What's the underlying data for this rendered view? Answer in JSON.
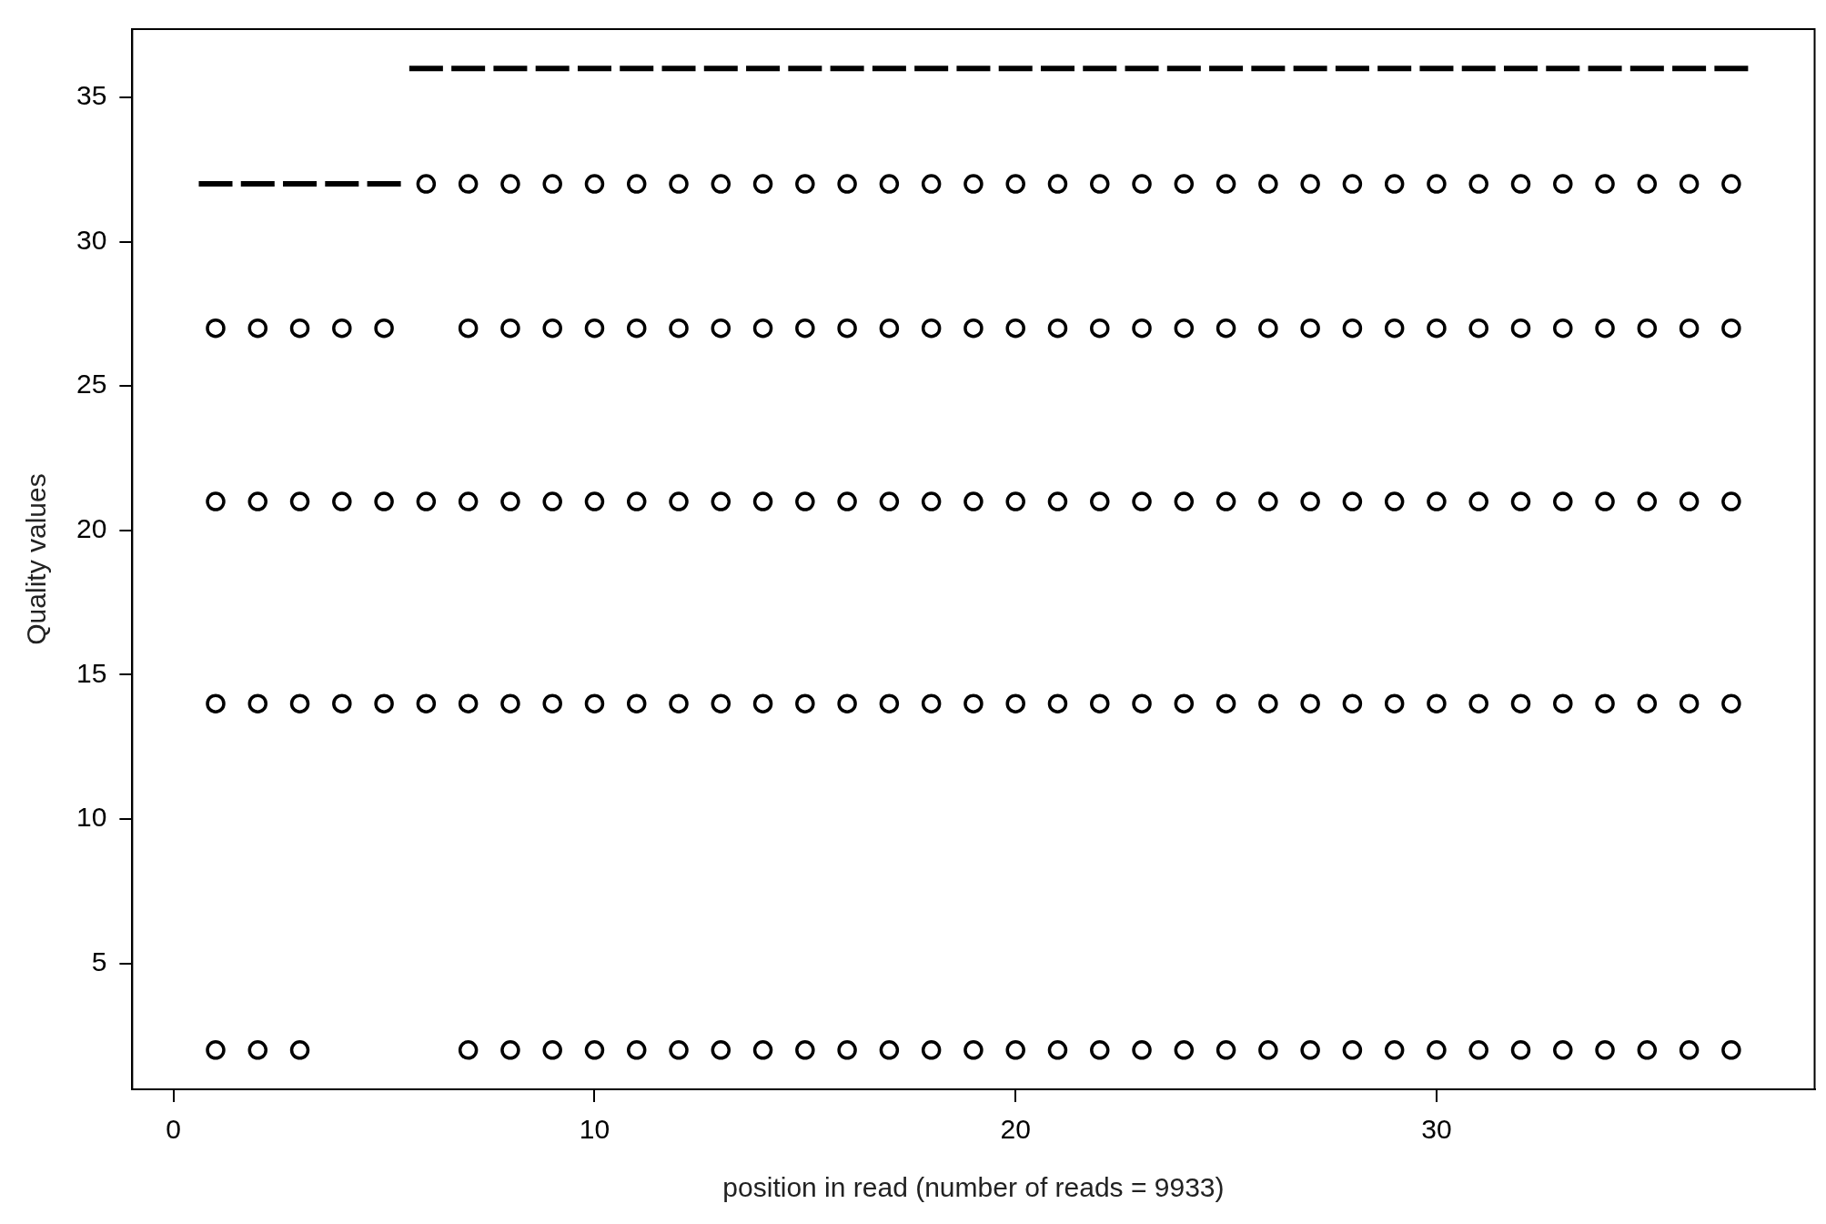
{
  "chart_data": {
    "type": "box",
    "xlabel": "position in read (number of reads = 9933)",
    "ylabel": "Quality values",
    "x": [
      1,
      2,
      3,
      4,
      5,
      6,
      7,
      8,
      9,
      10,
      11,
      12,
      13,
      14,
      15,
      16,
      17,
      18,
      19,
      20,
      21,
      22,
      23,
      24,
      25,
      26,
      27,
      28,
      29,
      30,
      31,
      32,
      33,
      34,
      35,
      36,
      37
    ],
    "xlim": [
      -0.98,
      38.98
    ],
    "xticks": [
      0,
      10,
      20,
      30
    ],
    "ylim": [
      0.64,
      37.36
    ],
    "yticks": [
      5,
      10,
      15,
      20,
      25,
      30,
      35
    ],
    "grid": false,
    "legend": false,
    "marker": "circle",
    "color": "#000000",
    "boxes": [
      {
        "low": 32,
        "q1": 32,
        "median": 32,
        "q3": 32,
        "high": 32,
        "outliers": [
          27,
          21,
          14,
          2
        ]
      },
      {
        "low": 32,
        "q1": 32,
        "median": 32,
        "q3": 32,
        "high": 32,
        "outliers": [
          27,
          21,
          14,
          2
        ]
      },
      {
        "low": 32,
        "q1": 32,
        "median": 32,
        "q3": 32,
        "high": 32,
        "outliers": [
          27,
          21,
          14,
          2
        ]
      },
      {
        "low": 32,
        "q1": 32,
        "median": 32,
        "q3": 32,
        "high": 32,
        "outliers": [
          27,
          21,
          14
        ]
      },
      {
        "low": 32,
        "q1": 32,
        "median": 32,
        "q3": 32,
        "high": 32,
        "outliers": [
          27,
          21,
          14
        ]
      },
      {
        "low": 36,
        "q1": 36,
        "median": 36,
        "q3": 36,
        "high": 36,
        "outliers": [
          32,
          21,
          14
        ]
      },
      {
        "low": 36,
        "q1": 36,
        "median": 36,
        "q3": 36,
        "high": 36,
        "outliers": [
          32,
          27,
          21,
          14,
          2
        ]
      },
      {
        "low": 36,
        "q1": 36,
        "median": 36,
        "q3": 36,
        "high": 36,
        "outliers": [
          32,
          27,
          21,
          14,
          2
        ]
      },
      {
        "low": 36,
        "q1": 36,
        "median": 36,
        "q3": 36,
        "high": 36,
        "outliers": [
          32,
          27,
          21,
          14,
          2
        ]
      },
      {
        "low": 36,
        "q1": 36,
        "median": 36,
        "q3": 36,
        "high": 36,
        "outliers": [
          32,
          27,
          21,
          14,
          2
        ]
      },
      {
        "low": 36,
        "q1": 36,
        "median": 36,
        "q3": 36,
        "high": 36,
        "outliers": [
          32,
          27,
          21,
          14,
          2
        ]
      },
      {
        "low": 36,
        "q1": 36,
        "median": 36,
        "q3": 36,
        "high": 36,
        "outliers": [
          32,
          27,
          21,
          14,
          2
        ]
      },
      {
        "low": 36,
        "q1": 36,
        "median": 36,
        "q3": 36,
        "high": 36,
        "outliers": [
          32,
          27,
          21,
          14,
          2
        ]
      },
      {
        "low": 36,
        "q1": 36,
        "median": 36,
        "q3": 36,
        "high": 36,
        "outliers": [
          32,
          27,
          21,
          14,
          2
        ]
      },
      {
        "low": 36,
        "q1": 36,
        "median": 36,
        "q3": 36,
        "high": 36,
        "outliers": [
          32,
          27,
          21,
          14,
          2
        ]
      },
      {
        "low": 36,
        "q1": 36,
        "median": 36,
        "q3": 36,
        "high": 36,
        "outliers": [
          32,
          27,
          21,
          14,
          2
        ]
      },
      {
        "low": 36,
        "q1": 36,
        "median": 36,
        "q3": 36,
        "high": 36,
        "outliers": [
          32,
          27,
          21,
          14,
          2
        ]
      },
      {
        "low": 36,
        "q1": 36,
        "median": 36,
        "q3": 36,
        "high": 36,
        "outliers": [
          32,
          27,
          21,
          14,
          2
        ]
      },
      {
        "low": 36,
        "q1": 36,
        "median": 36,
        "q3": 36,
        "high": 36,
        "outliers": [
          32,
          27,
          21,
          14,
          2
        ]
      },
      {
        "low": 36,
        "q1": 36,
        "median": 36,
        "q3": 36,
        "high": 36,
        "outliers": [
          32,
          27,
          21,
          14,
          2
        ]
      },
      {
        "low": 36,
        "q1": 36,
        "median": 36,
        "q3": 36,
        "high": 36,
        "outliers": [
          32,
          27,
          21,
          14,
          2
        ]
      },
      {
        "low": 36,
        "q1": 36,
        "median": 36,
        "q3": 36,
        "high": 36,
        "outliers": [
          32,
          27,
          21,
          14,
          2
        ]
      },
      {
        "low": 36,
        "q1": 36,
        "median": 36,
        "q3": 36,
        "high": 36,
        "outliers": [
          32,
          27,
          21,
          14,
          2
        ]
      },
      {
        "low": 36,
        "q1": 36,
        "median": 36,
        "q3": 36,
        "high": 36,
        "outliers": [
          32,
          27,
          21,
          14,
          2
        ]
      },
      {
        "low": 36,
        "q1": 36,
        "median": 36,
        "q3": 36,
        "high": 36,
        "outliers": [
          32,
          27,
          21,
          14,
          2
        ]
      },
      {
        "low": 36,
        "q1": 36,
        "median": 36,
        "q3": 36,
        "high": 36,
        "outliers": [
          32,
          27,
          21,
          14,
          2
        ]
      },
      {
        "low": 36,
        "q1": 36,
        "median": 36,
        "q3": 36,
        "high": 36,
        "outliers": [
          32,
          27,
          21,
          14,
          2
        ]
      },
      {
        "low": 36,
        "q1": 36,
        "median": 36,
        "q3": 36,
        "high": 36,
        "outliers": [
          32,
          27,
          21,
          14,
          2
        ]
      },
      {
        "low": 36,
        "q1": 36,
        "median": 36,
        "q3": 36,
        "high": 36,
        "outliers": [
          32,
          27,
          21,
          14,
          2
        ]
      },
      {
        "low": 36,
        "q1": 36,
        "median": 36,
        "q3": 36,
        "high": 36,
        "outliers": [
          32,
          27,
          21,
          14,
          2
        ]
      },
      {
        "low": 36,
        "q1": 36,
        "median": 36,
        "q3": 36,
        "high": 36,
        "outliers": [
          32,
          27,
          21,
          14,
          2
        ]
      },
      {
        "low": 36,
        "q1": 36,
        "median": 36,
        "q3": 36,
        "high": 36,
        "outliers": [
          32,
          27,
          21,
          14,
          2
        ]
      },
      {
        "low": 36,
        "q1": 36,
        "median": 36,
        "q3": 36,
        "high": 36,
        "outliers": [
          32,
          27,
          21,
          14,
          2
        ]
      },
      {
        "low": 36,
        "q1": 36,
        "median": 36,
        "q3": 36,
        "high": 36,
        "outliers": [
          32,
          27,
          21,
          14,
          2
        ]
      },
      {
        "low": 36,
        "q1": 36,
        "median": 36,
        "q3": 36,
        "high": 36,
        "outliers": [
          32,
          27,
          21,
          14,
          2
        ]
      },
      {
        "low": 36,
        "q1": 36,
        "median": 36,
        "q3": 36,
        "high": 36,
        "outliers": [
          32,
          27,
          21,
          14,
          2
        ]
      },
      {
        "low": 36,
        "q1": 36,
        "median": 36,
        "q3": 36,
        "high": 36,
        "outliers": [
          32,
          27,
          21,
          14,
          2
        ]
      }
    ]
  }
}
